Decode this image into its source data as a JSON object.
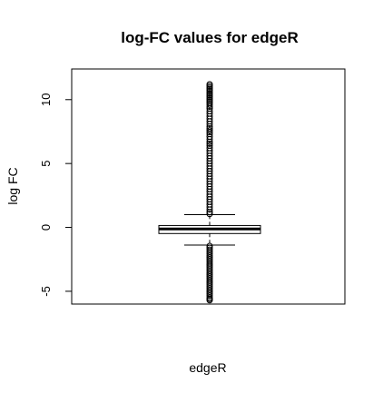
{
  "chart_data": {
    "type": "box",
    "title": "log-FC values for edgeR",
    "xlabel": "edgeR",
    "ylabel": "log FC",
    "categories": [
      "edgeR"
    ],
    "ylim": [
      -6.0,
      12.4
    ],
    "y_ticks": [
      -5,
      0,
      5,
      10
    ],
    "grid": false,
    "legend": "none",
    "box": {
      "q1": -0.48,
      "median": -0.12,
      "q3": 0.15,
      "whisker_low": -1.38,
      "whisker_high": 1.0
    },
    "outliers_high": [
      11.2,
      10.1,
      9.6,
      9.3,
      9.1,
      8.9,
      8.7,
      8.5,
      8.3,
      8.1,
      7.9,
      7.6,
      7.3,
      7.1,
      6.9,
      6.7,
      6.4,
      6.2,
      6.0,
      5.8,
      5.6,
      5.4,
      5.2,
      5.0,
      4.8,
      4.6,
      4.4,
      4.2,
      4.0,
      3.8,
      3.6,
      3.4,
      3.2,
      3.0,
      2.8,
      2.6,
      2.4,
      2.2,
      2.0,
      1.8,
      1.6,
      1.4,
      1.2,
      1.05
    ],
    "outliers_low": [
      -1.45,
      -1.6,
      -1.75,
      -1.9,
      -2.05,
      -2.2,
      -2.35,
      -2.5,
      -2.65,
      -2.8,
      -2.95,
      -3.1,
      -3.25,
      -3.4,
      -3.55,
      -3.7,
      -3.85,
      -4.0,
      -4.15,
      -4.3,
      -4.45,
      -4.6,
      -4.75,
      -4.9,
      -5.05,
      -5.2,
      -5.35,
      -5.5,
      -5.7
    ]
  }
}
